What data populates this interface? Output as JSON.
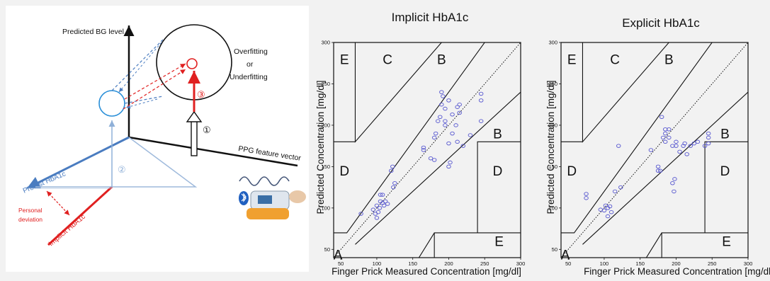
{
  "diagram": {
    "y_axis_label": "Predicted BG level",
    "x_axis_label": "PPG feature vector",
    "diag_axis_label": "Pretest HbA1c",
    "implicit_label": "Implicit HbA1c",
    "personal_deviation_line1": "Personal",
    "personal_deviation_line2": "deviation",
    "circle_label_line1": "Overfitting",
    "circle_label_line2": "or",
    "circle_label_line3": "Underfitting",
    "marker1": "①",
    "marker2": "②",
    "marker3": "③",
    "bluetooth_icon": "bluetooth-icon",
    "device_icon": "pulse-oximeter-icon",
    "colors": {
      "blue": "#4a7cc0",
      "red": "#e02020",
      "black": "#111111"
    }
  },
  "chart_data": [
    {
      "type": "scatter",
      "title": "Implicit HbA1c",
      "xlabel": "Finger Prick Measured Concentration [mg/dl]",
      "ylabel": "Predicted Concentration [mg/dl]",
      "xlim": [
        40,
        300
      ],
      "ylim": [
        40,
        300
      ],
      "x_ticks": [
        50,
        100,
        150,
        200,
        250,
        300
      ],
      "y_ticks": [
        50,
        100,
        150,
        200,
        250,
        300
      ],
      "zone_labels": [
        "E",
        "C",
        "B",
        "B",
        "D",
        "D",
        "A",
        "E"
      ],
      "marker_color": "#5a5ad0",
      "points": [
        [
          78,
          93
        ],
        [
          95,
          98
        ],
        [
          98,
          93
        ],
        [
          100,
          88
        ],
        [
          100,
          103
        ],
        [
          102,
          95
        ],
        [
          104,
          100
        ],
        [
          105,
          108
        ],
        [
          105,
          116
        ],
        [
          108,
          106
        ],
        [
          108,
          116
        ],
        [
          110,
          103
        ],
        [
          112,
          108
        ],
        [
          115,
          105
        ],
        [
          120,
          145
        ],
        [
          122,
          150
        ],
        [
          123,
          125
        ],
        [
          125,
          130
        ],
        [
          165,
          170
        ],
        [
          165,
          173
        ],
        [
          175,
          160
        ],
        [
          180,
          185
        ],
        [
          180,
          158
        ],
        [
          182,
          190
        ],
        [
          185,
          205
        ],
        [
          188,
          210
        ],
        [
          190,
          225
        ],
        [
          190,
          240
        ],
        [
          192,
          235
        ],
        [
          195,
          205
        ],
        [
          195,
          220
        ],
        [
          195,
          200
        ],
        [
          200,
          230
        ],
        [
          200,
          178
        ],
        [
          200,
          150
        ],
        [
          202,
          155
        ],
        [
          205,
          190
        ],
        [
          205,
          213
        ],
        [
          210,
          200
        ],
        [
          212,
          180
        ],
        [
          212,
          222
        ],
        [
          215,
          215
        ],
        [
          215,
          225
        ],
        [
          220,
          175
        ],
        [
          230,
          188
        ],
        [
          245,
          205
        ],
        [
          245,
          238
        ],
        [
          245,
          230
        ]
      ]
    },
    {
      "type": "scatter",
      "title": "Explicit HbA1c",
      "xlabel": "Finger Prick Measured Concentration [mg/dl]",
      "ylabel": "Predicted Concentration [mg/dl]",
      "xlim": [
        40,
        300
      ],
      "ylim": [
        40,
        300
      ],
      "x_ticks": [
        50,
        100,
        150,
        200,
        250,
        300
      ],
      "y_ticks": [
        50,
        100,
        150,
        200,
        250,
        300
      ],
      "zone_labels": [
        "E",
        "C",
        "B",
        "B",
        "D",
        "D",
        "A",
        "E"
      ],
      "marker_color": "#5a5ad0",
      "points": [
        [
          75,
          112
        ],
        [
          75,
          117
        ],
        [
          95,
          98
        ],
        [
          100,
          97
        ],
        [
          102,
          103
        ],
        [
          105,
          100
        ],
        [
          105,
          90
        ],
        [
          108,
          102
        ],
        [
          110,
          95
        ],
        [
          115,
          120
        ],
        [
          120,
          175
        ],
        [
          123,
          125
        ],
        [
          165,
          170
        ],
        [
          175,
          150
        ],
        [
          175,
          145
        ],
        [
          178,
          145
        ],
        [
          180,
          210
        ],
        [
          182,
          185
        ],
        [
          185,
          190
        ],
        [
          185,
          180
        ],
        [
          185,
          195
        ],
        [
          190,
          195
        ],
        [
          190,
          185
        ],
        [
          195,
          175
        ],
        [
          195,
          130
        ],
        [
          197,
          120
        ],
        [
          198,
          135
        ],
        [
          200,
          180
        ],
        [
          200,
          175
        ],
        [
          205,
          168
        ],
        [
          210,
          175
        ],
        [
          212,
          178
        ],
        [
          215,
          165
        ],
        [
          220,
          175
        ],
        [
          225,
          178
        ],
        [
          230,
          180
        ],
        [
          240,
          175
        ],
        [
          245,
          190
        ],
        [
          245,
          185
        ],
        [
          245,
          178
        ]
      ]
    }
  ]
}
